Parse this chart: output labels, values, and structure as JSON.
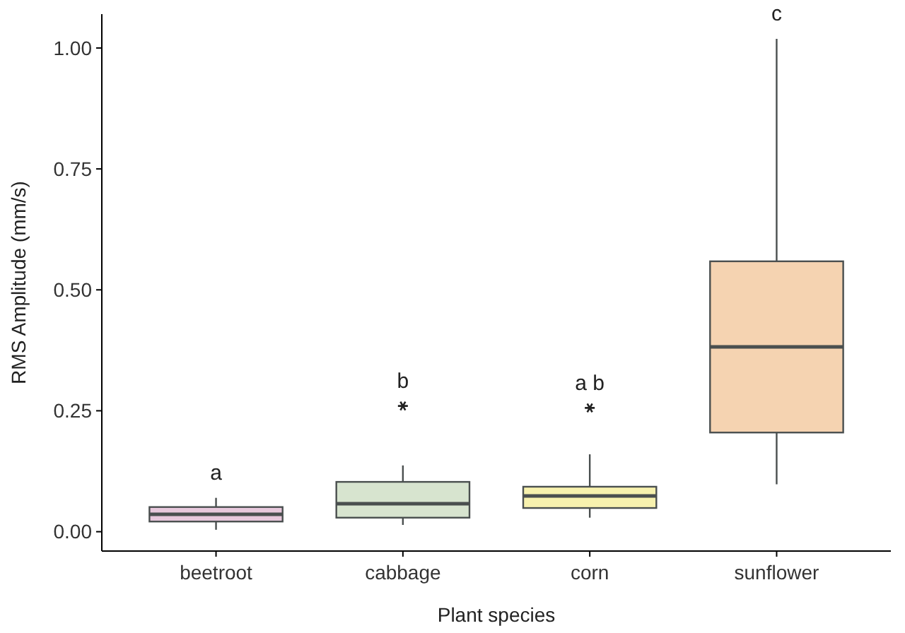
{
  "chart_data": {
    "type": "box",
    "xlabel": "Plant species",
    "ylabel": "RMS Amplitude (mm/s)",
    "categories": [
      "beetroot",
      "cabbage",
      "corn",
      "sunflower"
    ],
    "colors": [
      "#e8c8dc",
      "#d7e4cf",
      "#f7f1ae",
      "#f5d3b1"
    ],
    "boxes": [
      {
        "low": 0.004,
        "q1": 0.021,
        "median": 0.036,
        "q3": 0.051,
        "high": 0.07
      },
      {
        "low": 0.014,
        "q1": 0.029,
        "median": 0.058,
        "q3": 0.103,
        "high": 0.137,
        "outliers": [
          0.26
        ]
      },
      {
        "low": 0.029,
        "q1": 0.049,
        "median": 0.074,
        "q3": 0.093,
        "high": 0.16,
        "outliers": [
          0.256
        ]
      },
      {
        "low": 0.098,
        "q1": 0.205,
        "median": 0.382,
        "q3": 0.559,
        "high": 1.019
      }
    ],
    "ylim": [
      -0.04,
      1.07
    ],
    "yticks": [
      {
        "value": 0,
        "label": "0.00"
      },
      {
        "value": 0.25,
        "label": "0.25"
      },
      {
        "value": 0.5,
        "label": "0.50"
      },
      {
        "value": 0.75,
        "label": "0.75"
      },
      {
        "value": 1,
        "label": "1.00"
      }
    ],
    "annotations": [
      "a",
      "b",
      "a b",
      "c"
    ]
  }
}
